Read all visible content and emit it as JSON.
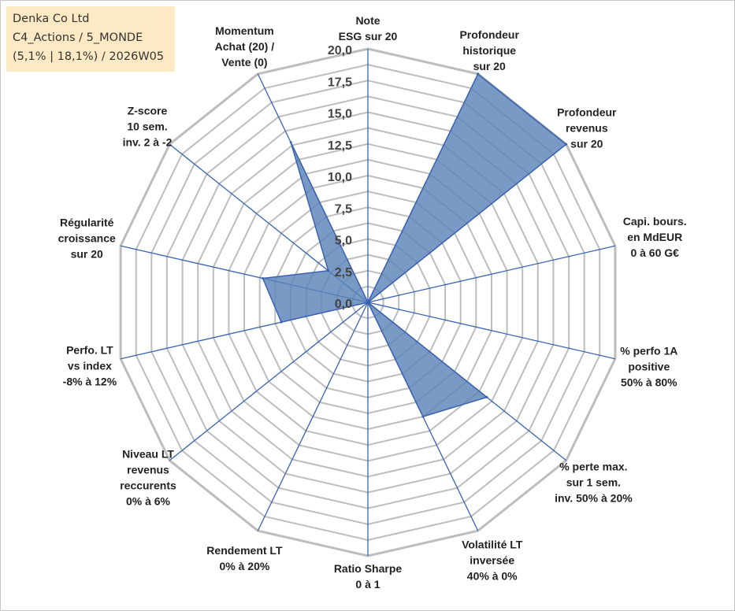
{
  "info_box": {
    "line1": "Denka Co Ltd",
    "line2": "C4_Actions / 5_MONDE",
    "line3": "(5,1% | 18,1%) / 2026W05"
  },
  "colors": {
    "fill": "#5b84b8",
    "spoke": "#3a62b0",
    "grid": "#bdbdbd",
    "info_bg": "#fde9c4"
  },
  "chart_data": {
    "type": "radar",
    "title": "",
    "rmin": 0,
    "rmax": 20,
    "ticks": [
      "0,0",
      "2,5",
      "5,0",
      "7,5",
      "10,0",
      "12,5",
      "15,0",
      "17,5",
      "20,0"
    ],
    "axes": [
      {
        "label": [
          "Note",
          "ESG sur 20"
        ],
        "value": 0
      },
      {
        "label": [
          "Profondeur",
          "historique",
          "sur 20"
        ],
        "value": 20
      },
      {
        "label": [
          "Profondeur",
          "revenus",
          "sur 20"
        ],
        "value": 20
      },
      {
        "label": [
          "Capi. bours.",
          "en MdEUR",
          "0 à 60 G€"
        ],
        "value": 0
      },
      {
        "label": [
          "% perfo 1A",
          "positive",
          "50% à 80%"
        ],
        "value": 0
      },
      {
        "label": [
          "% perte max.",
          "sur 1 sem.",
          "inv. 50% à 20%"
        ],
        "value": 12
      },
      {
        "label": [
          "Volatilité LT",
          "inversée",
          "40% à 0%"
        ],
        "value": 10
      },
      {
        "label": [
          "Ratio Sharpe",
          "0 à 1"
        ],
        "value": 0
      },
      {
        "label": [
          "Rendement LT",
          "0% à 20%"
        ],
        "value": 0
      },
      {
        "label": [
          "Niveau LT",
          "revenus",
          "reccurents",
          "0% à 6%"
        ],
        "value": 0
      },
      {
        "label": [
          "Perfo. LT",
          "vs index",
          "-8% à 12%"
        ],
        "value": 7
      },
      {
        "label": [
          "Régularité",
          "croissance",
          "sur 20"
        ],
        "value": 8.5
      },
      {
        "label": [
          "Z-score",
          "10 sem.",
          "inv. 2 à -2"
        ],
        "value": 4
      },
      {
        "label": [
          "Momentum",
          "Achat (20) /",
          "Vente (0)"
        ],
        "value": 14
      }
    ]
  }
}
